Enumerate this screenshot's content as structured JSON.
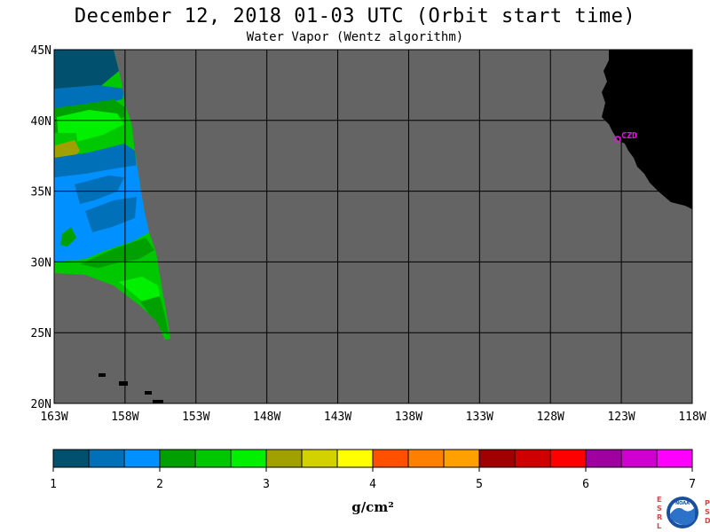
{
  "title": "December 12, 2018  01-03 UTC  (Orbit start time)",
  "subtitle": "Water Vapor (Wentz algorithm)",
  "lat_labels": [
    "45N",
    "40N",
    "35N",
    "30N",
    "25N",
    "20N"
  ],
  "lon_labels": [
    "163W",
    "158W",
    "153W",
    "148W",
    "143W",
    "138W",
    "133W",
    "128W",
    "123W",
    "118W"
  ],
  "lat_values": [
    45,
    40,
    35,
    30,
    25,
    20
  ],
  "lon_values": [
    -163,
    -158,
    -153,
    -148,
    -143,
    -138,
    -133,
    -128,
    -123,
    -118
  ],
  "station_label": "CZD",
  "colorbar": {
    "tick_labels": [
      "1",
      "2",
      "3",
      "4",
      "5",
      "6",
      "7"
    ],
    "unit": "g/cm²",
    "colors": [
      "#00506e",
      "#0070b8",
      "#0090ff",
      "#00a000",
      "#00c800",
      "#00f000",
      "#a0a000",
      "#d2d200",
      "#ffff00",
      "#ff5000",
      "#ff8000",
      "#ffa000",
      "#a00000",
      "#d00000",
      "#ff0000",
      "#a000a0",
      "#d000d0",
      "#ff00ff"
    ]
  },
  "logo": {
    "left_letters": "ESRL",
    "right_letters": "PSD",
    "center": "NOAA"
  },
  "colors": {
    "ocean_no_data": "#646464",
    "land": "#000000",
    "station": "#ff00ff",
    "grid": "#000000"
  }
}
